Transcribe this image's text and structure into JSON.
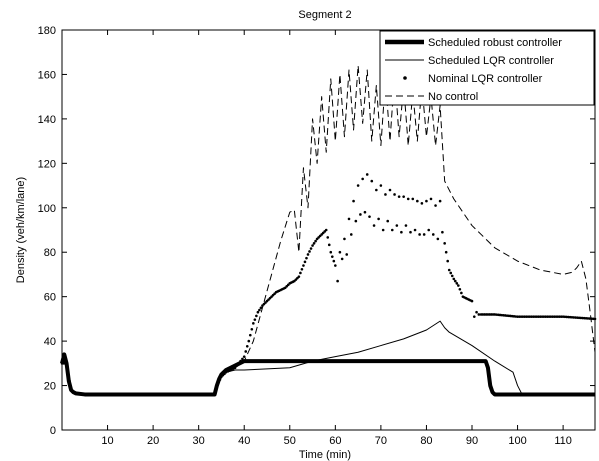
{
  "chart_data": {
    "type": "line",
    "title": "Segment 2",
    "xlabel": "Time (min)",
    "ylabel": "Density (veh/km/lane)",
    "xlim": [
      0,
      117
    ],
    "ylim": [
      0,
      180
    ],
    "xticks": [
      10,
      20,
      30,
      40,
      50,
      60,
      70,
      80,
      90,
      100,
      110
    ],
    "yticks": [
      0,
      20,
      40,
      60,
      80,
      100,
      120,
      140,
      160,
      180
    ],
    "grid": false,
    "legend_position": "top-right",
    "series": [
      {
        "name": "Scheduled robust controller",
        "style": "thick-solid",
        "x": [
          0,
          0.5,
          1,
          1.5,
          2,
          2.5,
          3,
          5,
          10,
          20,
          30,
          33.5,
          34,
          34.5,
          35,
          36,
          37,
          38,
          39,
          40,
          45,
          50,
          55,
          60,
          65,
          70,
          75,
          80,
          85,
          90,
          93,
          93.5,
          94,
          94.5,
          95,
          100,
          105,
          110,
          117
        ],
        "y": [
          30,
          34,
          30,
          22,
          18,
          17,
          16.5,
          16,
          16,
          16,
          16,
          16,
          20,
          23,
          25,
          27,
          28,
          29,
          30,
          31,
          31,
          31,
          31,
          31,
          31,
          31,
          31,
          31,
          31,
          31,
          31,
          28,
          20,
          17,
          16,
          16,
          16,
          16,
          16
        ]
      },
      {
        "name": "Scheduled LQR controller",
        "style": "thin-solid",
        "x": [
          0,
          0.5,
          1,
          1.5,
          2,
          2.5,
          3,
          5,
          10,
          20,
          30,
          33.5,
          34,
          35,
          36,
          38,
          40,
          45,
          50,
          55,
          60,
          65,
          70,
          75,
          80,
          83,
          84,
          85,
          90,
          95,
          99,
          100,
          101,
          105,
          110,
          117
        ],
        "y": [
          30,
          34,
          30,
          22,
          18,
          17,
          16.5,
          16,
          16,
          16,
          16,
          16,
          20,
          24,
          26,
          27,
          27,
          27.5,
          28,
          31,
          33,
          35,
          38,
          41,
          45,
          49,
          46,
          44,
          38,
          31,
          26,
          20,
          16,
          16,
          16,
          16
        ]
      },
      {
        "name": "Nominal LQR controller",
        "style": "dotted",
        "x": [
          0,
          1,
          2,
          3,
          5,
          10,
          20,
          30,
          33.5,
          34,
          35,
          36,
          38,
          40,
          41,
          42,
          43,
          44,
          45,
          46,
          47,
          48,
          49,
          50,
          51,
          52,
          53,
          54,
          55,
          56,
          57,
          58,
          59,
          60,
          60.5,
          61,
          61.5,
          62,
          62.5,
          63,
          63.5,
          64,
          64.5,
          65,
          65.5,
          66,
          66.5,
          67,
          67.5,
          68,
          68.5,
          69,
          69.5,
          70,
          70.5,
          71,
          71.5,
          72,
          72.5,
          73,
          73.5,
          74,
          74.5,
          75,
          75.5,
          76,
          76.5,
          77,
          77.5,
          78,
          78.5,
          79,
          79.5,
          80,
          80.5,
          81,
          81.5,
          82,
          82.5,
          83,
          83.5,
          84,
          85,
          86,
          87,
          88,
          89,
          90,
          90.5,
          91,
          91.5,
          92,
          95,
          100,
          105,
          110,
          117
        ],
        "y": [
          30,
          30,
          18,
          16.5,
          16,
          16,
          16,
          16,
          16,
          20,
          24,
          26,
          28,
          33,
          40,
          48,
          53,
          56,
          58,
          60,
          62,
          63,
          64,
          66,
          67,
          69,
          74,
          79,
          83,
          86,
          88,
          90,
          80,
          74,
          67,
          80,
          77,
          86,
          79,
          95,
          88,
          103,
          94,
          110,
          97,
          113,
          98,
          115,
          96,
          112,
          92,
          108,
          95,
          110,
          90,
          106,
          94,
          108,
          90,
          106,
          92,
          105,
          89,
          105,
          92,
          104,
          89,
          104,
          90,
          103,
          88,
          102,
          88,
          103,
          90,
          104,
          88,
          101,
          86,
          103,
          89,
          84,
          72,
          68,
          65,
          60,
          59,
          58,
          51,
          53,
          52,
          52,
          52,
          51,
          51,
          51,
          50
        ]
      },
      {
        "name": "No control",
        "style": "dashed",
        "x": [
          0,
          1,
          2,
          3,
          5,
          10,
          20,
          30,
          33.5,
          34,
          35,
          36,
          38,
          40,
          42,
          44,
          46,
          48,
          50,
          51,
          52,
          53,
          54,
          55,
          56,
          57,
          58,
          59,
          60,
          61,
          62,
          63,
          64,
          65,
          66,
          67,
          68,
          69,
          70,
          71,
          72,
          73,
          74,
          75,
          76,
          77,
          78,
          79,
          80,
          81,
          82,
          83,
          84,
          86,
          88,
          90,
          92,
          95,
          100,
          105,
          110,
          112,
          113,
          114,
          115,
          116,
          117
        ],
        "y": [
          30,
          30,
          18,
          16.5,
          16,
          16,
          16,
          16,
          16,
          20,
          24,
          26,
          28,
          31,
          40,
          55,
          70,
          85,
          98,
          99,
          80,
          118,
          100,
          140,
          120,
          150,
          125,
          158,
          130,
          160,
          132,
          162,
          135,
          164,
          138,
          162,
          130,
          155,
          128,
          158,
          130,
          160,
          132,
          155,
          128,
          152,
          130,
          155,
          132,
          150,
          128,
          146,
          112,
          104,
          98,
          92,
          88,
          82,
          76,
          72,
          70,
          71,
          73,
          76,
          68,
          52,
          35
        ]
      }
    ]
  }
}
